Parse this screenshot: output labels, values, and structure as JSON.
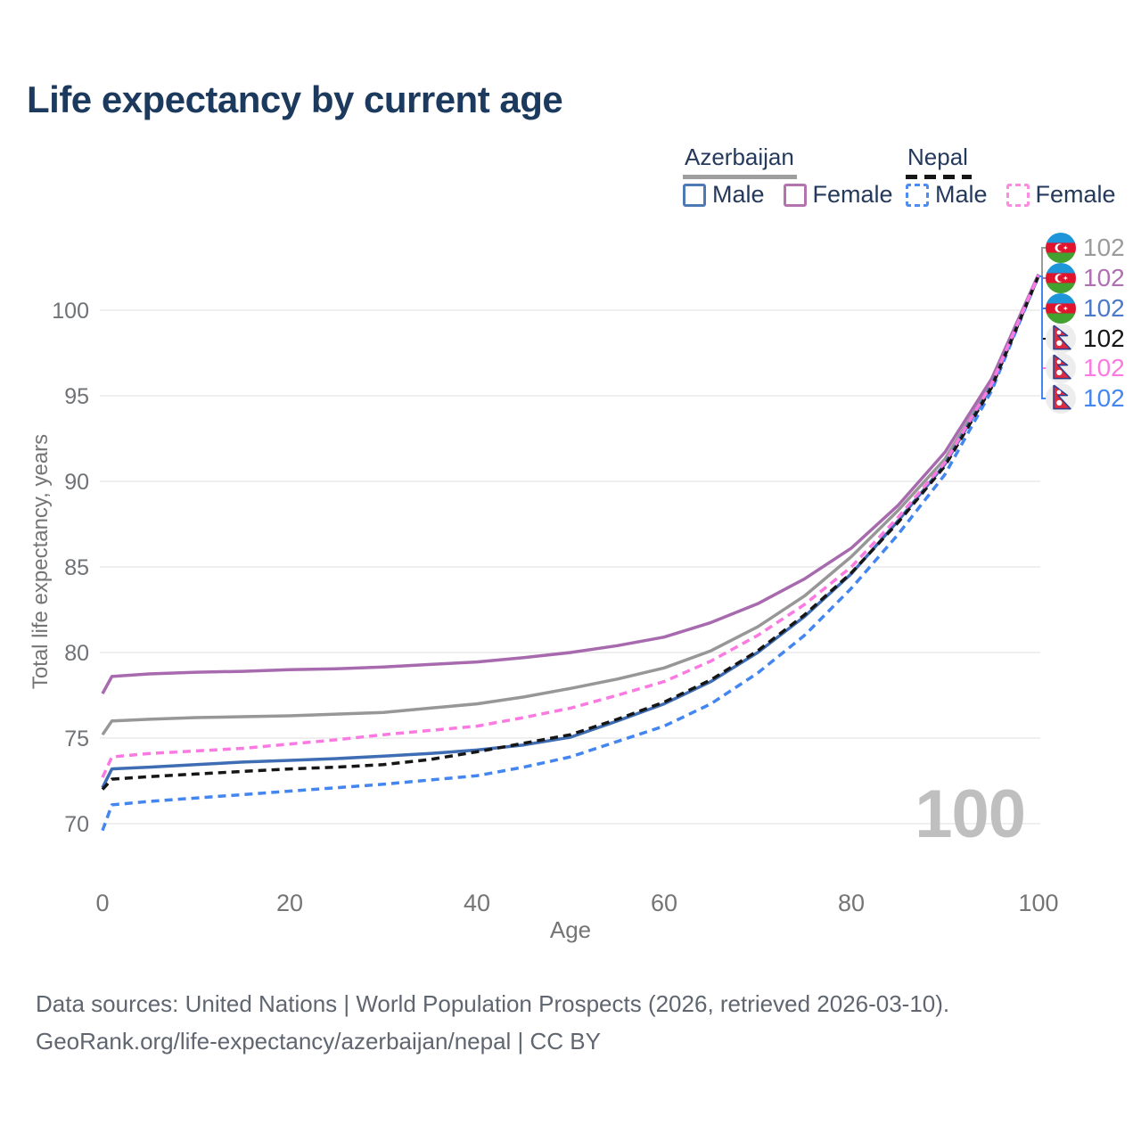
{
  "title": "Life expectancy by current age",
  "legend": {
    "azerbaijan": {
      "title": "Azerbaijan",
      "underline_color": "#9e9e9e",
      "male": {
        "label": "Male",
        "color": "#4d79b5"
      },
      "female": {
        "label": "Female",
        "color": "#b273af"
      }
    },
    "nepal": {
      "title": "Nepal",
      "underline_color": "#161616",
      "male": {
        "label": "Male",
        "color": "#4e8cf0"
      },
      "female": {
        "label": "Female",
        "color": "#fb8ce2"
      }
    }
  },
  "chart_data": {
    "type": "line",
    "title": "Life expectancy by current age",
    "xlabel": "Age",
    "ylabel": "Total life expectancy, years",
    "xlim": [
      0,
      100
    ],
    "ylim": [
      66.5,
      103
    ],
    "xticks": [
      "0",
      "20",
      "40",
      "60",
      "80",
      "100"
    ],
    "yticks": [
      "70",
      "75",
      "80",
      "85",
      "90",
      "95",
      "100"
    ],
    "grid": "horizontal",
    "legend_position": "top-right",
    "watermark": "100",
    "x": [
      0,
      1,
      5,
      10,
      15,
      20,
      25,
      30,
      35,
      40,
      45,
      50,
      55,
      60,
      65,
      70,
      75,
      80,
      85,
      90,
      95,
      100
    ],
    "series": [
      {
        "name": "Azerbaijan Both sexes",
        "color": "#979797",
        "dash": "solid",
        "values": [
          75.2,
          76.0,
          76.1,
          76.2,
          76.25,
          76.3,
          76.4,
          76.5,
          76.75,
          77.0,
          77.4,
          77.9,
          78.45,
          79.1,
          80.1,
          81.5,
          83.3,
          85.6,
          88.3,
          91.3,
          95.7,
          102.0
        ]
      },
      {
        "name": "Azerbaijan Female",
        "color": "#a76aae",
        "dash": "solid",
        "values": [
          77.6,
          78.6,
          78.75,
          78.85,
          78.9,
          79.0,
          79.05,
          79.15,
          79.3,
          79.45,
          79.7,
          80.0,
          80.4,
          80.9,
          81.75,
          82.85,
          84.3,
          86.1,
          88.6,
          91.7,
          96.0,
          102.1
        ]
      },
      {
        "name": "Azerbaijan Male",
        "color": "#3f6db4",
        "dash": "solid",
        "values": [
          72.1,
          73.2,
          73.3,
          73.45,
          73.6,
          73.7,
          73.8,
          73.95,
          74.1,
          74.3,
          74.6,
          75.05,
          76.0,
          77.0,
          78.3,
          80.0,
          82.1,
          84.6,
          87.7,
          91.0,
          95.6,
          102.0
        ]
      },
      {
        "name": "Nepal Both sexes",
        "color": "#161616",
        "dash": "dashed",
        "values": [
          72.0,
          72.6,
          72.75,
          72.9,
          73.05,
          73.2,
          73.3,
          73.45,
          73.75,
          74.2,
          74.7,
          75.2,
          76.1,
          77.1,
          78.4,
          80.1,
          82.2,
          84.65,
          87.6,
          90.9,
          95.5,
          102.0
        ]
      },
      {
        "name": "Nepal Female",
        "color": "#fb7ae1",
        "dash": "dashed",
        "values": [
          72.7,
          73.9,
          74.1,
          74.25,
          74.4,
          74.65,
          74.9,
          75.2,
          75.45,
          75.7,
          76.2,
          76.75,
          77.5,
          78.3,
          79.5,
          81.0,
          82.8,
          85.0,
          87.9,
          91.1,
          95.7,
          102.05
        ]
      },
      {
        "name": "Nepal Male",
        "color": "#4486ef",
        "dash": "dashed",
        "values": [
          69.6,
          71.1,
          71.3,
          71.5,
          71.7,
          71.9,
          72.1,
          72.3,
          72.55,
          72.8,
          73.3,
          73.9,
          74.8,
          75.7,
          77.0,
          78.8,
          81.0,
          83.75,
          86.9,
          90.4,
          95.3,
          102.0
        ]
      }
    ],
    "end_labels": [
      {
        "flag": "azerbaijan",
        "value": "102",
        "color": "#9b9b9b",
        "series": "Azerbaijan Both sexes"
      },
      {
        "flag": "azerbaijan",
        "value": "102",
        "color": "#b06fb2",
        "series": "Azerbaijan Female"
      },
      {
        "flag": "azerbaijan",
        "value": "102",
        "color": "#4b79c8",
        "series": "Azerbaijan Male"
      },
      {
        "flag": "nepal",
        "value": "102",
        "color": "#161616",
        "series": "Nepal Both sexes"
      },
      {
        "flag": "nepal",
        "value": "102",
        "color": "#fb7ae1",
        "series": "Nepal Female"
      },
      {
        "flag": "nepal",
        "value": "102",
        "color": "#4486ef",
        "series": "Nepal Male"
      }
    ]
  },
  "footer": {
    "line1": "Data sources: United Nations | World Population Prospects (2026, retrieved 2026-03-10).",
    "line2": "GeoRank.org/life-expectancy/azerbaijan/nepal | CC BY"
  }
}
